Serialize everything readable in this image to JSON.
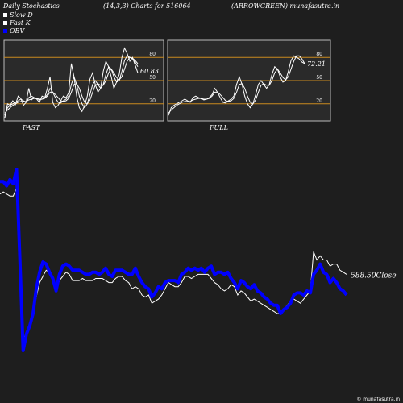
{
  "header": {
    "left": "Daily Stochastics",
    "center": "(14,3,3) Charts for 516064",
    "right": "(ARROWGREEN) munafasutra.in"
  },
  "legend": [
    {
      "label": "Slow  D",
      "color": "#ffffff"
    },
    {
      "label": "Fast K",
      "color": "#ffffff"
    },
    {
      "label": "OBV",
      "color": "#0000ff"
    }
  ],
  "panels": {
    "fast_label": "FAST",
    "full_label": "FULL",
    "fast_last_value": "60.83",
    "full_last_value": "72.21"
  },
  "close_label": "588.50Close",
  "copyright": "© munafasutra.in",
  "colors": {
    "background": "#1e1e1e",
    "panel_bg": "#2a2a2a",
    "level_line": "#c98a1e",
    "obv": "#0000ff",
    "price": "#ffffff"
  },
  "chart_data": [
    {
      "type": "line",
      "name": "fast",
      "ylim": [
        0,
        100
      ],
      "ticks": [
        80,
        50,
        20
      ],
      "series": [
        {
          "values": [
            2,
            20,
            18,
            24,
            19,
            30,
            27,
            18,
            22,
            40,
            25,
            28,
            26,
            22,
            30,
            28,
            40,
            55,
            22,
            15,
            18,
            24,
            30,
            28,
            34,
            72,
            55,
            30,
            15,
            10,
            18,
            30,
            52,
            60,
            45,
            35,
            40,
            62,
            75,
            68,
            55,
            40,
            48,
            58,
            80,
            92,
            85,
            75,
            80,
            70,
            60
          ]
        },
        {
          "values": [
            5,
            15,
            18,
            20,
            22,
            24,
            26,
            24,
            22,
            28,
            30,
            28,
            27,
            25,
            26,
            28,
            32,
            40,
            35,
            28,
            22,
            21,
            24,
            26,
            30,
            45,
            55,
            45,
            30,
            20,
            15,
            20,
            32,
            45,
            50,
            45,
            40,
            45,
            58,
            68,
            65,
            55,
            48,
            50,
            62,
            76,
            82,
            80,
            78,
            74,
            68
          ]
        },
        {
          "values": [
            8,
            12,
            15,
            18,
            20,
            22,
            23,
            23,
            23,
            25,
            26,
            27,
            27,
            26,
            26,
            27,
            30,
            35,
            35,
            32,
            28,
            24,
            23,
            24,
            27,
            35,
            45,
            46,
            40,
            30,
            22,
            20,
            25,
            35,
            44,
            46,
            44,
            44,
            50,
            60,
            65,
            60,
            54,
            51,
            55,
            65,
            75,
            80,
            79,
            76,
            72
          ]
        }
      ]
    },
    {
      "type": "line",
      "name": "full",
      "ylim": [
        0,
        100
      ],
      "ticks": [
        80,
        50,
        20
      ],
      "series": [
        {
          "values": [
            5,
            15,
            18,
            20,
            22,
            24,
            26,
            24,
            22,
            28,
            30,
            28,
            27,
            25,
            26,
            28,
            32,
            40,
            35,
            28,
            22,
            21,
            24,
            26,
            30,
            45,
            55,
            45,
            30,
            20,
            15,
            20,
            32,
            45,
            50,
            45,
            40,
            45,
            58,
            68,
            65,
            55,
            48,
            50,
            62,
            76,
            82,
            80,
            78,
            74,
            72
          ]
        },
        {
          "values": [
            8,
            12,
            15,
            18,
            20,
            22,
            23,
            23,
            23,
            25,
            26,
            27,
            27,
            26,
            26,
            27,
            30,
            35,
            35,
            32,
            28,
            24,
            23,
            24,
            27,
            35,
            45,
            46,
            40,
            30,
            22,
            20,
            25,
            35,
            44,
            46,
            44,
            44,
            50,
            60,
            65,
            60,
            54,
            51,
            55,
            65,
            75,
            82,
            82,
            78,
            72
          ]
        }
      ]
    },
    {
      "type": "line",
      "name": "price-obv",
      "series": [
        {
          "name": "OBV",
          "values": [
            92,
            92,
            90,
            93,
            91,
            98,
            55,
            10,
            18,
            22,
            28,
            40,
            48,
            53,
            52,
            48,
            45,
            39,
            47,
            51,
            52,
            51,
            49,
            49,
            49,
            48,
            47,
            47,
            48,
            48,
            47,
            48,
            50,
            47,
            46,
            49,
            49,
            49,
            48,
            47,
            47,
            50,
            46,
            43,
            41,
            40,
            36,
            38,
            41,
            40,
            43,
            44,
            44,
            44,
            43,
            47,
            48,
            50,
            49,
            50,
            49,
            50,
            48,
            50,
            51,
            47,
            48,
            48,
            47,
            48,
            45,
            43,
            40,
            44,
            43,
            41,
            40,
            42,
            39,
            38,
            36,
            35,
            33,
            32,
            32,
            28,
            30,
            31,
            33,
            37,
            38,
            38,
            37,
            39,
            38,
            47,
            49,
            52,
            48,
            47,
            43,
            45,
            43,
            40,
            39,
            37
          ]
        },
        {
          "name": "Close",
          "values": [
            86,
            87,
            86,
            85,
            85,
            89,
            55,
            15,
            19,
            22,
            28,
            36,
            43,
            46,
            49,
            48,
            44,
            39,
            44,
            46,
            48,
            47,
            44,
            44,
            44,
            45,
            44,
            44,
            44,
            45,
            45,
            45,
            44,
            43,
            43,
            45,
            46,
            46,
            44,
            43,
            40,
            41,
            40,
            37,
            36,
            37,
            33,
            34,
            35,
            37,
            40,
            43,
            42,
            41,
            41,
            43,
            46,
            46,
            45,
            46,
            47,
            47,
            47,
            47,
            45,
            43,
            42,
            40,
            39,
            40,
            42,
            41,
            37,
            39,
            38,
            36,
            34,
            35,
            34,
            33,
            32,
            31,
            30,
            29,
            28,
            28,
            30,
            32,
            34,
            35,
            34,
            33,
            35,
            37,
            39,
            58,
            54,
            56,
            54,
            54,
            51,
            52,
            52,
            49,
            48,
            47
          ]
        }
      ]
    }
  ]
}
